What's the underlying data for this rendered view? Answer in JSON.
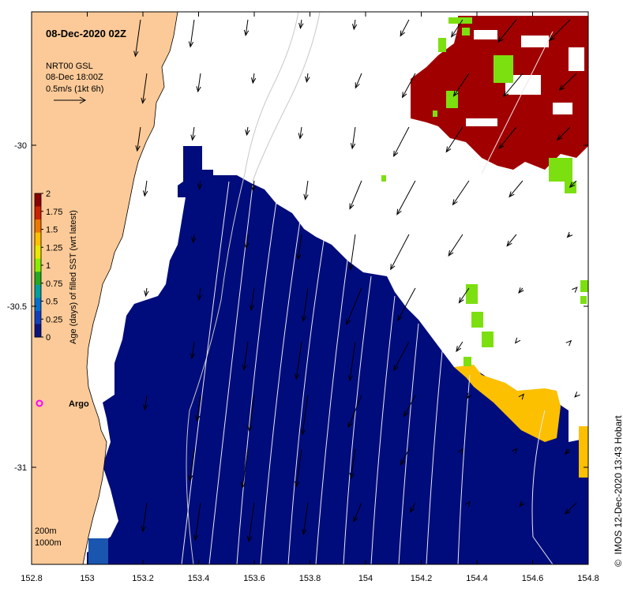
{
  "title": "08-Dec-2020 02Z",
  "vector_legend": {
    "line1": "NRT00 GSL",
    "line2": "08-Dec 18:00Z",
    "line3": "0.5m/s (1kt 6h)"
  },
  "colorbar": {
    "label": "Age (days) of filled SST (wrt latest)",
    "ticks": [
      "2",
      "1.75",
      "1.5",
      "1.25",
      "1",
      "0.75",
      "0.5",
      "0.25",
      "0"
    ],
    "colors": [
      "#8b0000",
      "#cc2200",
      "#ee7700",
      "#ffc000",
      "#e8e800",
      "#88ee00",
      "#22aa22",
      "#00a0a0",
      "#0070d0",
      "#1040c0",
      "#0a1480"
    ]
  },
  "lat_labels": [
    "-30",
    "-30.5",
    "-31"
  ],
  "lon_labels": [
    "152.8",
    "153",
    "153.2",
    "153.4",
    "153.6",
    "153.8",
    "154",
    "154.2",
    "154.4",
    "154.6",
    "154.8"
  ],
  "argo_label": "Argo",
  "depth_legend": {
    "line1": "200m",
    "line2": "1000m"
  },
  "credit": "IMOS 12-Dec-2020 13:43 Hobart",
  "copyright_symbol": "©",
  "colors": {
    "land": "#fcca98",
    "sst_recent": "#000c7c",
    "sst_old": "#a00000",
    "green": "#7ce010",
    "orange": "#fcc000",
    "argo": "#ff00ff"
  }
}
